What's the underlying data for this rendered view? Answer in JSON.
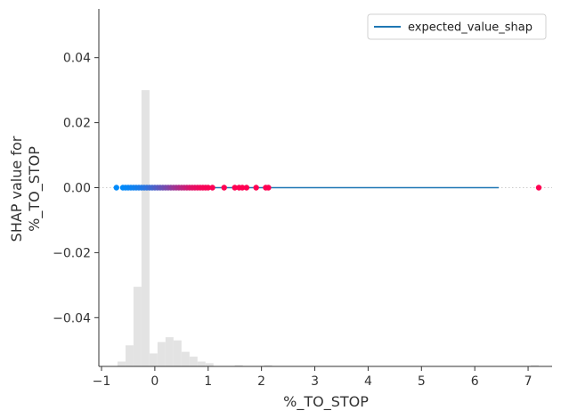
{
  "chart_data": {
    "type": "scatter",
    "title": "",
    "xlabel": "%_TO_STOP",
    "ylabel_lines": [
      "SHAP value for",
      "%_TO_STOP"
    ],
    "xlim": [
      -1.05,
      7.45
    ],
    "ylim": [
      -0.055,
      0.055
    ],
    "xticks": [
      -1,
      0,
      1,
      2,
      3,
      4,
      5,
      6,
      7
    ],
    "xtick_labels": [
      "−1",
      "0",
      "1",
      "2",
      "3",
      "4",
      "5",
      "6",
      "7"
    ],
    "yticks": [
      -0.04,
      -0.02,
      0.0,
      0.02,
      0.04
    ],
    "ytick_labels": [
      "−0.04",
      "−0.02",
      "0.00",
      "0.02",
      "0.04"
    ],
    "grid": false,
    "legend": {
      "placement": "top-right",
      "entries": [
        {
          "label": "expected_value_shap",
          "color": "#1f77b4"
        }
      ]
    },
    "expected_value_line": {
      "x": [
        -0.55,
        6.45
      ],
      "y": 0.0,
      "color": "#1f77b4"
    },
    "zero_reference": {
      "y": 0.0,
      "color": "#cccccc"
    },
    "colors": {
      "low": "#008bfb",
      "high": "#ff0052",
      "hist": "#e3e3e3"
    },
    "histogram": {
      "bins": [
        {
          "x0": -0.7,
          "x1": -0.55,
          "h": 0.0015
        },
        {
          "x0": -0.55,
          "x1": -0.4,
          "h": 0.0065
        },
        {
          "x0": -0.4,
          "x1": -0.25,
          "h": 0.0245
        },
        {
          "x0": -0.25,
          "x1": -0.1,
          "h": 0.085
        },
        {
          "x0": -0.1,
          "x1": 0.05,
          "h": 0.004
        },
        {
          "x0": 0.05,
          "x1": 0.2,
          "h": 0.0075
        },
        {
          "x0": 0.2,
          "x1": 0.35,
          "h": 0.009
        },
        {
          "x0": 0.35,
          "x1": 0.5,
          "h": 0.008
        },
        {
          "x0": 0.5,
          "x1": 0.65,
          "h": 0.0045
        },
        {
          "x0": 0.65,
          "x1": 0.8,
          "h": 0.003
        },
        {
          "x0": 0.8,
          "x1": 0.95,
          "h": 0.0015
        },
        {
          "x0": 0.95,
          "x1": 1.1,
          "h": 0.001
        },
        {
          "x0": 1.5,
          "x1": 1.65,
          "h": 0.0004
        },
        {
          "x0": 2.05,
          "x1": 2.2,
          "h": 0.0004
        },
        {
          "x0": 7.05,
          "x1": 7.2,
          "h": 0.0004
        }
      ],
      "baseline": -0.055
    },
    "points": [
      {
        "x": -0.72,
        "y": 0.0,
        "c": 0.0
      },
      {
        "x": -0.6,
        "y": 0.0,
        "c": 0.0
      },
      {
        "x": -0.55,
        "y": 0.0,
        "c": 0.02
      },
      {
        "x": -0.5,
        "y": 0.0,
        "c": 0.03
      },
      {
        "x": -0.45,
        "y": 0.0,
        "c": 0.05
      },
      {
        "x": -0.4,
        "y": 0.0,
        "c": 0.06
      },
      {
        "x": -0.35,
        "y": 0.0,
        "c": 0.08
      },
      {
        "x": -0.3,
        "y": 0.0,
        "c": 0.1
      },
      {
        "x": -0.25,
        "y": 0.0,
        "c": 0.12
      },
      {
        "x": -0.2,
        "y": 0.0,
        "c": 0.15
      },
      {
        "x": -0.15,
        "y": 0.0,
        "c": 0.18
      },
      {
        "x": -0.1,
        "y": 0.0,
        "c": 0.22
      },
      {
        "x": -0.05,
        "y": 0.0,
        "c": 0.26
      },
      {
        "x": 0.0,
        "y": 0.0,
        "c": 0.3
      },
      {
        "x": 0.05,
        "y": 0.0,
        "c": 0.34
      },
      {
        "x": 0.1,
        "y": 0.0,
        "c": 0.38
      },
      {
        "x": 0.15,
        "y": 0.0,
        "c": 0.42
      },
      {
        "x": 0.2,
        "y": 0.0,
        "c": 0.46
      },
      {
        "x": 0.25,
        "y": 0.0,
        "c": 0.5
      },
      {
        "x": 0.3,
        "y": 0.0,
        "c": 0.55
      },
      {
        "x": 0.35,
        "y": 0.0,
        "c": 0.6
      },
      {
        "x": 0.4,
        "y": 0.0,
        "c": 0.64
      },
      {
        "x": 0.45,
        "y": 0.0,
        "c": 0.68
      },
      {
        "x": 0.5,
        "y": 0.0,
        "c": 0.72
      },
      {
        "x": 0.55,
        "y": 0.0,
        "c": 0.76
      },
      {
        "x": 0.6,
        "y": 0.0,
        "c": 0.8
      },
      {
        "x": 0.65,
        "y": 0.0,
        "c": 0.84
      },
      {
        "x": 0.7,
        "y": 0.0,
        "c": 0.88
      },
      {
        "x": 0.75,
        "y": 0.0,
        "c": 0.9
      },
      {
        "x": 0.8,
        "y": 0.0,
        "c": 0.92
      },
      {
        "x": 0.85,
        "y": 0.0,
        "c": 0.94
      },
      {
        "x": 0.9,
        "y": 0.0,
        "c": 0.96
      },
      {
        "x": 0.95,
        "y": 0.0,
        "c": 0.97
      },
      {
        "x": 1.0,
        "y": 0.0,
        "c": 0.98
      },
      {
        "x": 1.08,
        "y": 0.0,
        "c": 0.99
      },
      {
        "x": 1.3,
        "y": 0.0,
        "c": 1.0
      },
      {
        "x": 1.5,
        "y": 0.0,
        "c": 1.0
      },
      {
        "x": 1.58,
        "y": 0.0,
        "c": 1.0
      },
      {
        "x": 1.64,
        "y": 0.0,
        "c": 1.0
      },
      {
        "x": 1.72,
        "y": 0.0,
        "c": 1.0
      },
      {
        "x": 1.9,
        "y": 0.0,
        "c": 1.0
      },
      {
        "x": 2.08,
        "y": 0.0,
        "c": 1.0
      },
      {
        "x": 2.13,
        "y": 0.0,
        "c": 1.0
      },
      {
        "x": 7.2,
        "y": 0.0,
        "c": 1.0
      }
    ]
  }
}
